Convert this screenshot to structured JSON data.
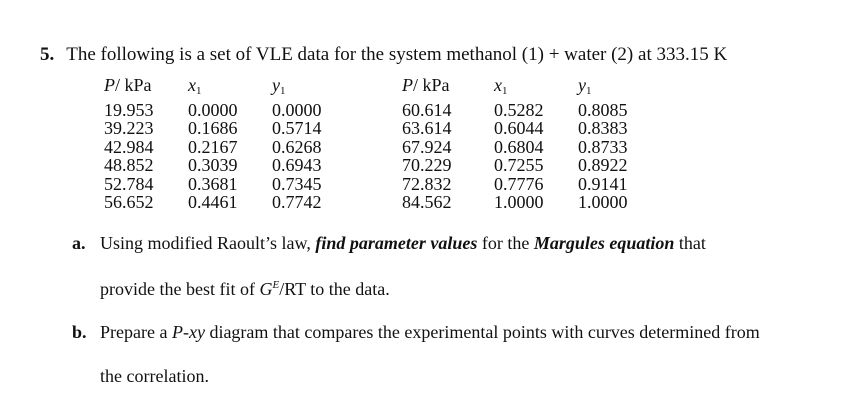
{
  "problem": {
    "number": "5.",
    "statement": "The following is a set of VLE data for the system methanol (1) + water (2) at 333.15 K"
  },
  "table": {
    "headers": {
      "p_var": "P",
      "p_unit": "/ kPa",
      "x_var": "x",
      "y_var": "y",
      "sub": "1"
    },
    "rows": [
      [
        "19.953",
        "0.0000",
        "0.0000",
        "60.614",
        "0.5282",
        "0.8085"
      ],
      [
        "39.223",
        "0.1686",
        "0.5714",
        "63.614",
        "0.6044",
        "0.8383"
      ],
      [
        "42.984",
        "0.2167",
        "0.6268",
        "67.924",
        "0.6804",
        "0.8733"
      ],
      [
        "48.852",
        "0.3039",
        "0.6943",
        "70.229",
        "0.7255",
        "0.8922"
      ],
      [
        "52.784",
        "0.3681",
        "0.7345",
        "72.832",
        "0.7776",
        "0.9141"
      ],
      [
        "56.652",
        "0.4461",
        "0.7742",
        "84.562",
        "1.0000",
        "1.0000"
      ]
    ]
  },
  "part_a": {
    "label": "a.",
    "t1": "Using modified Raoult’s law, ",
    "t2": "find parameter values",
    "t3": " for the ",
    "t4": "Margules equation",
    "t5": " that",
    "line2_pre": "provide the best fit of ",
    "g_var": "G",
    "g_sup": "E",
    "line2_post": "/RT to the data."
  },
  "part_b": {
    "label": "b.",
    "t1": "Prepare a ",
    "t2": "P-xy",
    "t3": " diagram that compares the experimental points with curves determined from",
    "line2": "the correlation."
  }
}
